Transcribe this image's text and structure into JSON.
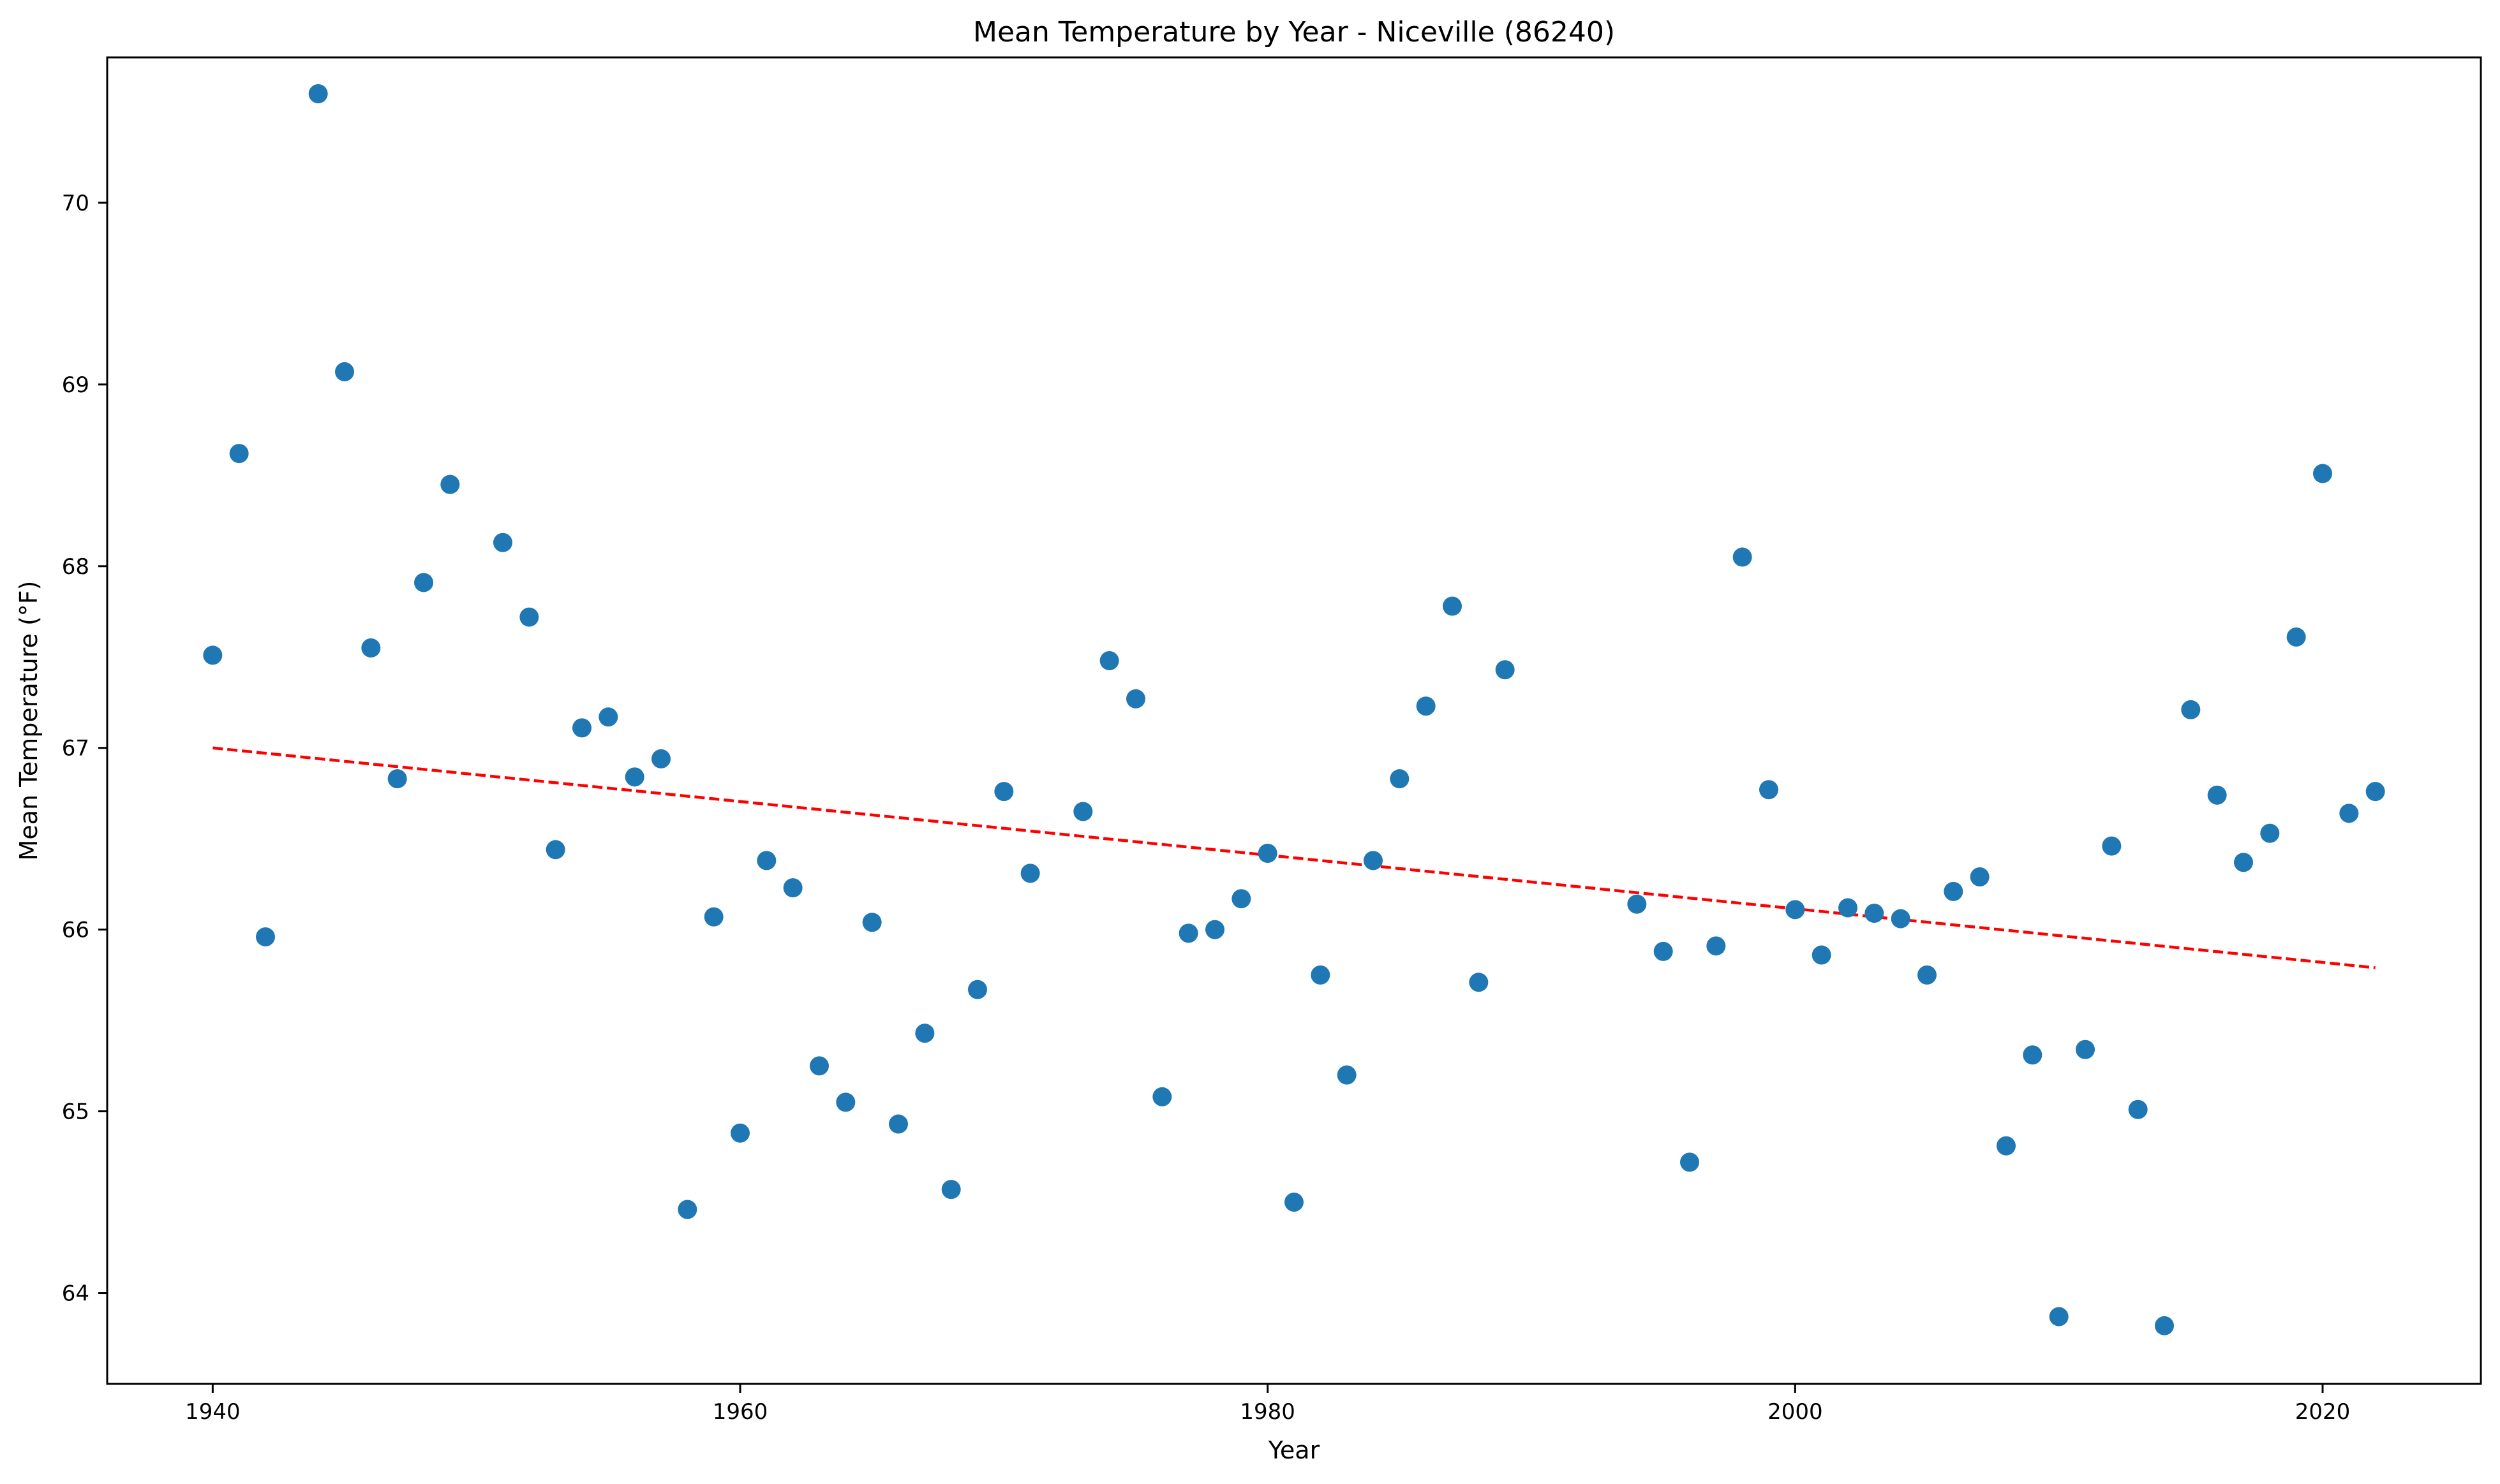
{
  "chart_data": {
    "type": "scatter",
    "title": "Mean Temperature by Year - Niceville (86240)",
    "xlabel": "Year",
    "ylabel": "Mean Temperature (°F)",
    "xlim": [
      1936,
      2026
    ],
    "ylim": [
      63.5,
      70.8
    ],
    "xticks": [
      1940,
      1960,
      1980,
      2000,
      2020
    ],
    "yticks": [
      64,
      65,
      66,
      67,
      68,
      69,
      70
    ],
    "grid": false,
    "point_color": "#1f77b4",
    "trend_color": "#ff0000",
    "series": [
      {
        "x": [
          1940,
          1941,
          1942,
          1944,
          1945,
          1946,
          1947,
          1948,
          1949,
          1951,
          1952,
          1953,
          1954,
          1955,
          1956,
          1957,
          1958,
          1959,
          1960,
          1961,
          1962,
          1963,
          1964,
          1965,
          1966,
          1967,
          1968,
          1969,
          1970,
          1971,
          1973,
          1974,
          1975,
          1976,
          1977,
          1978,
          1979,
          1980,
          1981,
          1982,
          1983,
          1984,
          1985,
          1986,
          1987,
          1988,
          1989,
          1994,
          1995,
          1996,
          1997,
          1998,
          1999,
          2000,
          2001,
          2002,
          2003,
          2004,
          2005,
          2006,
          2007,
          2008,
          2009,
          2010,
          2011,
          2012,
          2013,
          2014,
          2015,
          2016,
          2017,
          2018,
          2019,
          2020,
          2021,
          2022
        ],
        "y": [
          67.51,
          68.62,
          65.96,
          70.6,
          69.07,
          67.55,
          66.83,
          67.91,
          68.45,
          68.13,
          67.72,
          66.44,
          67.11,
          67.17,
          66.84,
          66.94,
          64.46,
          66.07,
          64.88,
          66.38,
          66.23,
          65.25,
          65.05,
          66.04,
          64.93,
          65.43,
          64.57,
          65.67,
          66.76,
          66.31,
          66.65,
          67.48,
          67.27,
          65.08,
          65.98,
          66.0,
          66.17,
          66.42,
          64.5,
          65.75,
          65.2,
          66.38,
          66.83,
          67.23,
          67.78,
          65.71,
          67.43,
          66.14,
          65.88,
          64.72,
          65.91,
          68.05,
          66.77,
          66.11,
          65.86,
          66.12,
          66.09,
          66.06,
          65.75,
          66.21,
          66.29,
          64.81,
          65.31,
          63.87,
          65.34,
          66.46,
          65.01,
          63.82,
          67.21,
          66.74,
          66.37,
          66.53,
          67.61,
          68.51,
          66.64,
          66.76
        ]
      }
    ],
    "trend": {
      "x": [
        1940,
        2022
      ],
      "y": [
        67.0,
        65.79
      ]
    }
  }
}
